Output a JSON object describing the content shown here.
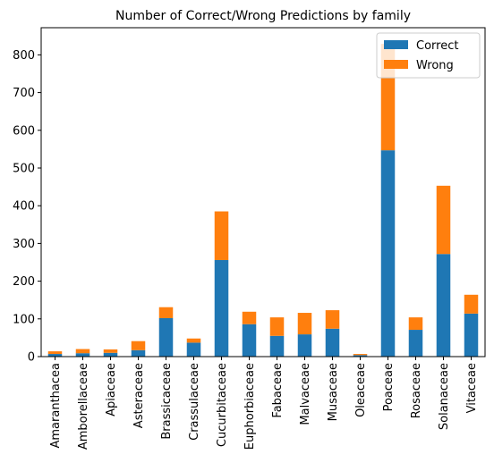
{
  "chart_data": {
    "type": "bar",
    "stacked": true,
    "title": "Number of Correct/Wrong Predictions by family",
    "xlabel": "",
    "ylabel": "",
    "categories": [
      "Amaranthacea",
      "Amborellaceae",
      "Apiaceae",
      "Asteraceae",
      "Brassicaceae",
      "Crassulaceae",
      "Cucurbitaceae",
      "Euphorbiaceae",
      "Fabaceae",
      "Malvaceae",
      "Musaceae",
      "Oleaceae",
      "Poaceae",
      "Rosaceae",
      "Solanaceae",
      "Vitaceae"
    ],
    "series": [
      {
        "name": "Correct",
        "color": "#1f77b4",
        "values": [
          7,
          9,
          10,
          17,
          102,
          37,
          256,
          86,
          55,
          59,
          74,
          4,
          547,
          71,
          272,
          114
        ]
      },
      {
        "name": "Wrong",
        "color": "#ff7f0e",
        "values": [
          7,
          11,
          9,
          24,
          29,
          11,
          129,
          33,
          49,
          57,
          49,
          3,
          282,
          33,
          181,
          50
        ]
      }
    ],
    "ylim": [
      0,
      872
    ],
    "yticks": [
      0,
      100,
      200,
      300,
      400,
      500,
      600,
      700,
      800
    ],
    "legend_position": "top-right",
    "grid": false
  }
}
